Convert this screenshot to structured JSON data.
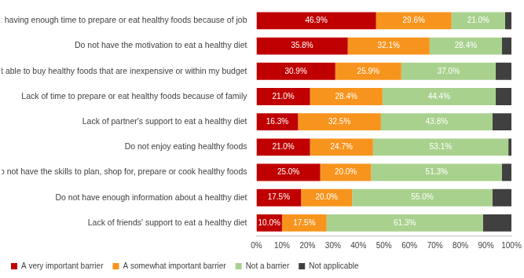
{
  "chart_data": {
    "type": "bar",
    "orientation": "horizontal",
    "stacked": true,
    "grid": false,
    "legend": "bottom",
    "data_labels": true,
    "categories": [
      "Not having enough time to prepare or eat healthy foods because of job",
      "Do not have the motivation to eat a healthy diet",
      "Not able to buy healthy foods that are inexpensive or within my budget",
      "Lack of time to prepare or eat healthy foods because of family",
      "Lack of partner's support to eat a healthy diet",
      "Do not enjoy eating healthy foods",
      "Do not have the skills to plan, shop for, prepare or cook healthy foods",
      "Do not have enough information about a healthy diet",
      "Lack of friends' support to eat a healthy diet"
    ],
    "series": [
      {
        "name": "A very important barrier",
        "color": "#c00000",
        "values": [
          46.9,
          35.8,
          30.9,
          21.0,
          16.3,
          21.0,
          25.0,
          17.5,
          10.0
        ],
        "value_labels": [
          "46.9%",
          "35.8%",
          "30.9%",
          "21.0%",
          "16.3%",
          "21.0%",
          "25.0%",
          "17.5%",
          "10.0%"
        ]
      },
      {
        "name": "A somewhat important barrier",
        "color": "#f7941d",
        "values": [
          29.6,
          32.1,
          25.9,
          28.4,
          32.5,
          24.7,
          20.0,
          20.0,
          17.5
        ],
        "value_labels": [
          "29.6%",
          "32.1%",
          "25.9%",
          "28.4%",
          "32.5%",
          "24.7%",
          "20.0%",
          "20.0%",
          "17.5%"
        ]
      },
      {
        "name": "Not a barrier",
        "color": "#a9d18e",
        "values": [
          21.0,
          28.4,
          37.0,
          44.4,
          43.8,
          53.1,
          51.3,
          55.0,
          61.3
        ],
        "value_labels": [
          "21.0%",
          "28.4%",
          "37.0%",
          "44.4%",
          "43.8%",
          "53.1%",
          "51.3%",
          "55.0%",
          "61.3%"
        ]
      },
      {
        "name": "Not applicable",
        "color": "#404040",
        "values": [
          2.5,
          3.7,
          6.2,
          6.2,
          7.4,
          1.2,
          3.7,
          7.5,
          11.2
        ]
      }
    ],
    "xlim": [
      0,
      100
    ],
    "xticks": [
      {
        "value": 0,
        "label": "0%"
      },
      {
        "value": 10,
        "label": "10%"
      },
      {
        "value": 20,
        "label": "20%"
      },
      {
        "value": 30,
        "label": "30%"
      },
      {
        "value": 40,
        "label": "40%"
      },
      {
        "value": 50,
        "label": "50%"
      },
      {
        "value": 60,
        "label": "60%"
      },
      {
        "value": 70,
        "label": "70%"
      },
      {
        "value": 80,
        "label": "80%"
      },
      {
        "value": 90,
        "label": "90%"
      },
      {
        "value": 100,
        "label": "100%"
      }
    ]
  }
}
